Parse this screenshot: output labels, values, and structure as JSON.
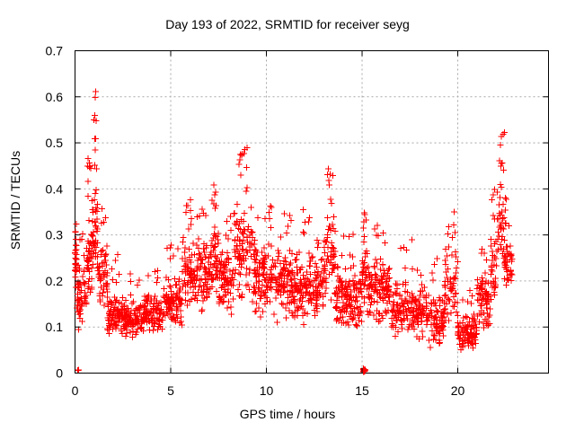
{
  "chart_data": {
    "type": "scatter",
    "title": "Day 193 of 2022, SRMTID for receiver seyg",
    "xlabel": "GPS time / hours",
    "ylabel": "SRMTID / TECUs",
    "xlim": [
      0,
      24.74
    ],
    "ylim": [
      0,
      0.7
    ],
    "xticks": [
      0,
      5,
      10,
      15,
      20
    ],
    "xtick_labels": [
      "0",
      "5",
      "10",
      "15",
      "20"
    ],
    "yticks": [
      0,
      0.1,
      0.2,
      0.3,
      0.4,
      0.5,
      0.6,
      0.7
    ],
    "ytick_labels": [
      "0",
      "0.1",
      "0.2",
      "0.3",
      "0.4",
      "0.5",
      "0.6",
      "0.7"
    ],
    "grid": true,
    "grid_style": "dashed",
    "grid_color": "#a8a8a8",
    "border_color": "#000000",
    "marker": "plus",
    "marker_color": "#ff0000",
    "legend": "none",
    "n_points_approx": 2400,
    "notable_peaks": [
      {
        "t": 1.0,
        "y": 0.62
      },
      {
        "t": 6.0,
        "y": 0.4
      },
      {
        "t": 7.3,
        "y": 0.42
      },
      {
        "t": 9.0,
        "y": 0.49
      },
      {
        "t": 13.3,
        "y": 0.45
      },
      {
        "t": 19.7,
        "y": 0.37
      },
      {
        "t": 22.2,
        "y": 0.53
      }
    ],
    "density_segments_columns": [
      "t_start",
      "t_end",
      "n_core",
      "y_core_lo",
      "y_core_hi",
      "n_outlier",
      "y_out_lo",
      "y_out_hi"
    ],
    "density_segments": [
      [
        0.0,
        0.08,
        26,
        0.17,
        0.33,
        0,
        0.0,
        0.0
      ],
      [
        0.08,
        0.6,
        55,
        0.09,
        0.24,
        4,
        0.25,
        0.34
      ],
      [
        0.6,
        0.9,
        40,
        0.15,
        0.35,
        8,
        0.36,
        0.47
      ],
      [
        0.9,
        1.2,
        42,
        0.22,
        0.42,
        10,
        0.43,
        0.62
      ],
      [
        1.2,
        1.7,
        48,
        0.12,
        0.3,
        4,
        0.31,
        0.36
      ],
      [
        1.7,
        2.6,
        90,
        0.08,
        0.17,
        6,
        0.18,
        0.27
      ],
      [
        2.6,
        3.6,
        100,
        0.07,
        0.16,
        5,
        0.17,
        0.22
      ],
      [
        3.6,
        4.6,
        95,
        0.08,
        0.18,
        5,
        0.19,
        0.24
      ],
      [
        4.6,
        5.6,
        90,
        0.1,
        0.22,
        6,
        0.23,
        0.28
      ],
      [
        5.6,
        6.2,
        55,
        0.13,
        0.3,
        8,
        0.31,
        0.4
      ],
      [
        6.2,
        7.0,
        80,
        0.13,
        0.3,
        6,
        0.31,
        0.36
      ],
      [
        7.0,
        7.5,
        50,
        0.15,
        0.33,
        7,
        0.34,
        0.42
      ],
      [
        7.5,
        8.3,
        75,
        0.12,
        0.28,
        5,
        0.29,
        0.35
      ],
      [
        8.3,
        9.3,
        90,
        0.15,
        0.38,
        12,
        0.39,
        0.49
      ],
      [
        9.3,
        10.5,
        110,
        0.12,
        0.3,
        8,
        0.31,
        0.37
      ],
      [
        10.5,
        11.5,
        95,
        0.1,
        0.28,
        6,
        0.29,
        0.35
      ],
      [
        11.5,
        12.5,
        95,
        0.1,
        0.28,
        6,
        0.29,
        0.37
      ],
      [
        12.5,
        13.0,
        45,
        0.1,
        0.26,
        3,
        0.27,
        0.31
      ],
      [
        13.0,
        13.6,
        55,
        0.15,
        0.35,
        8,
        0.36,
        0.45
      ],
      [
        13.6,
        15.0,
        130,
        0.09,
        0.24,
        6,
        0.25,
        0.31
      ],
      [
        15.0,
        15.3,
        30,
        0.12,
        0.3,
        5,
        0.31,
        0.35
      ],
      [
        15.3,
        16.5,
        110,
        0.1,
        0.26,
        6,
        0.27,
        0.33
      ],
      [
        16.5,
        18.5,
        175,
        0.07,
        0.2,
        8,
        0.21,
        0.3
      ],
      [
        18.5,
        19.3,
        70,
        0.05,
        0.17,
        4,
        0.18,
        0.25
      ],
      [
        19.3,
        20.0,
        55,
        0.1,
        0.28,
        7,
        0.29,
        0.37
      ],
      [
        20.0,
        21.0,
        95,
        0.04,
        0.13,
        5,
        0.14,
        0.18
      ],
      [
        21.0,
        21.7,
        65,
        0.08,
        0.22,
        4,
        0.23,
        0.27
      ],
      [
        21.7,
        22.05,
        30,
        0.15,
        0.32,
        5,
        0.33,
        0.4
      ],
      [
        22.05,
        22.55,
        35,
        0.22,
        0.42,
        9,
        0.43,
        0.53
      ],
      [
        22.4,
        22.85,
        40,
        0.18,
        0.3,
        2,
        0.31,
        0.33
      ]
    ],
    "zero_clusters_columns": [
      "t_start",
      "t_end",
      "n",
      "y_lo",
      "y_hi"
    ],
    "zero_clusters": [
      [
        0.1,
        0.22,
        3,
        0.0,
        0.01
      ],
      [
        15.05,
        15.18,
        12,
        0.002,
        0.01
      ]
    ]
  }
}
